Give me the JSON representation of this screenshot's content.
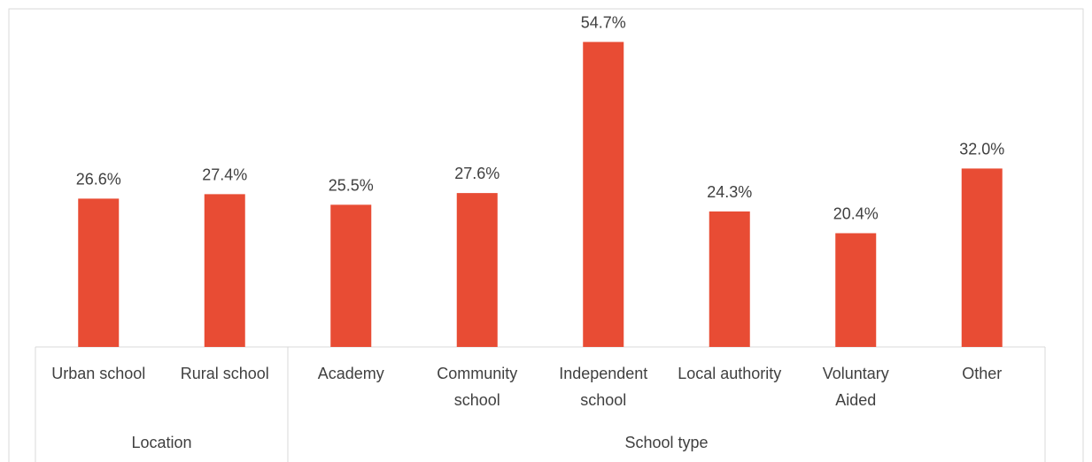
{
  "chart_data": {
    "type": "bar",
    "title": "",
    "xlabel": "",
    "ylabel": "",
    "ylim": [
      0,
      60
    ],
    "grid": false,
    "legend": "none",
    "bar_color": "#e84c34",
    "categories": [
      "Urban school",
      "Rural school",
      "Academy",
      "Community school",
      "Independent school",
      "Local authority",
      "Voluntary Aided",
      "Other"
    ],
    "category_lines": [
      [
        "Urban school"
      ],
      [
        "Rural school"
      ],
      [
        "Academy"
      ],
      [
        "Community",
        "school"
      ],
      [
        "Independent",
        "school"
      ],
      [
        "Local authority"
      ],
      [
        "Voluntary",
        "Aided"
      ],
      [
        "Other"
      ]
    ],
    "values": [
      26.6,
      27.4,
      25.5,
      27.6,
      54.7,
      24.3,
      20.4,
      32.0
    ],
    "data_labels": [
      "26.6%",
      "27.4%",
      "25.5%",
      "27.6%",
      "54.7%",
      "24.3%",
      "20.4%",
      "32.0%"
    ],
    "groups": [
      {
        "label": "Location",
        "start": 0,
        "count": 2
      },
      {
        "label": "School type",
        "start": 2,
        "count": 6
      }
    ]
  }
}
